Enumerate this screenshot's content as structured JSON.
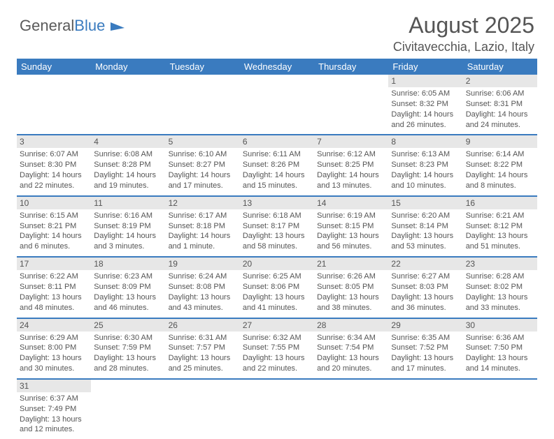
{
  "brand": {
    "part1": "General",
    "part2": "Blue",
    "color1": "#5a5a5a",
    "color2": "#3a7bbf"
  },
  "header": {
    "title": "August 2025",
    "subtitle": "Civitavecchia, Lazio, Italy"
  },
  "style": {
    "header_bg": "#3a7bbf",
    "header_fg": "#ffffff",
    "daynum_bg": "#e7e7e7",
    "text_color": "#555555",
    "row_border": "#3a7bbf",
    "title_fontsize": 32,
    "subtitle_fontsize": 18,
    "thead_fontsize": 13,
    "daynum_fontsize": 12,
    "info_fontsize": 11
  },
  "weekdays": [
    "Sunday",
    "Monday",
    "Tuesday",
    "Wednesday",
    "Thursday",
    "Friday",
    "Saturday"
  ],
  "weeks": [
    [
      null,
      null,
      null,
      null,
      null,
      {
        "n": "1",
        "sr": "6:05 AM",
        "ss": "8:32 PM",
        "dl": "14 hours and 26 minutes."
      },
      {
        "n": "2",
        "sr": "6:06 AM",
        "ss": "8:31 PM",
        "dl": "14 hours and 24 minutes."
      }
    ],
    [
      {
        "n": "3",
        "sr": "6:07 AM",
        "ss": "8:30 PM",
        "dl": "14 hours and 22 minutes."
      },
      {
        "n": "4",
        "sr": "6:08 AM",
        "ss": "8:28 PM",
        "dl": "14 hours and 19 minutes."
      },
      {
        "n": "5",
        "sr": "6:10 AM",
        "ss": "8:27 PM",
        "dl": "14 hours and 17 minutes."
      },
      {
        "n": "6",
        "sr": "6:11 AM",
        "ss": "8:26 PM",
        "dl": "14 hours and 15 minutes."
      },
      {
        "n": "7",
        "sr": "6:12 AM",
        "ss": "8:25 PM",
        "dl": "14 hours and 13 minutes."
      },
      {
        "n": "8",
        "sr": "6:13 AM",
        "ss": "8:23 PM",
        "dl": "14 hours and 10 minutes."
      },
      {
        "n": "9",
        "sr": "6:14 AM",
        "ss": "8:22 PM",
        "dl": "14 hours and 8 minutes."
      }
    ],
    [
      {
        "n": "10",
        "sr": "6:15 AM",
        "ss": "8:21 PM",
        "dl": "14 hours and 6 minutes."
      },
      {
        "n": "11",
        "sr": "6:16 AM",
        "ss": "8:19 PM",
        "dl": "14 hours and 3 minutes."
      },
      {
        "n": "12",
        "sr": "6:17 AM",
        "ss": "8:18 PM",
        "dl": "14 hours and 1 minute."
      },
      {
        "n": "13",
        "sr": "6:18 AM",
        "ss": "8:17 PM",
        "dl": "13 hours and 58 minutes."
      },
      {
        "n": "14",
        "sr": "6:19 AM",
        "ss": "8:15 PM",
        "dl": "13 hours and 56 minutes."
      },
      {
        "n": "15",
        "sr": "6:20 AM",
        "ss": "8:14 PM",
        "dl": "13 hours and 53 minutes."
      },
      {
        "n": "16",
        "sr": "6:21 AM",
        "ss": "8:12 PM",
        "dl": "13 hours and 51 minutes."
      }
    ],
    [
      {
        "n": "17",
        "sr": "6:22 AM",
        "ss": "8:11 PM",
        "dl": "13 hours and 48 minutes."
      },
      {
        "n": "18",
        "sr": "6:23 AM",
        "ss": "8:09 PM",
        "dl": "13 hours and 46 minutes."
      },
      {
        "n": "19",
        "sr": "6:24 AM",
        "ss": "8:08 PM",
        "dl": "13 hours and 43 minutes."
      },
      {
        "n": "20",
        "sr": "6:25 AM",
        "ss": "8:06 PM",
        "dl": "13 hours and 41 minutes."
      },
      {
        "n": "21",
        "sr": "6:26 AM",
        "ss": "8:05 PM",
        "dl": "13 hours and 38 minutes."
      },
      {
        "n": "22",
        "sr": "6:27 AM",
        "ss": "8:03 PM",
        "dl": "13 hours and 36 minutes."
      },
      {
        "n": "23",
        "sr": "6:28 AM",
        "ss": "8:02 PM",
        "dl": "13 hours and 33 minutes."
      }
    ],
    [
      {
        "n": "24",
        "sr": "6:29 AM",
        "ss": "8:00 PM",
        "dl": "13 hours and 30 minutes."
      },
      {
        "n": "25",
        "sr": "6:30 AM",
        "ss": "7:59 PM",
        "dl": "13 hours and 28 minutes."
      },
      {
        "n": "26",
        "sr": "6:31 AM",
        "ss": "7:57 PM",
        "dl": "13 hours and 25 minutes."
      },
      {
        "n": "27",
        "sr": "6:32 AM",
        "ss": "7:55 PM",
        "dl": "13 hours and 22 minutes."
      },
      {
        "n": "28",
        "sr": "6:34 AM",
        "ss": "7:54 PM",
        "dl": "13 hours and 20 minutes."
      },
      {
        "n": "29",
        "sr": "6:35 AM",
        "ss": "7:52 PM",
        "dl": "13 hours and 17 minutes."
      },
      {
        "n": "30",
        "sr": "6:36 AM",
        "ss": "7:50 PM",
        "dl": "13 hours and 14 minutes."
      }
    ],
    [
      {
        "n": "31",
        "sr": "6:37 AM",
        "ss": "7:49 PM",
        "dl": "13 hours and 12 minutes."
      },
      null,
      null,
      null,
      null,
      null,
      null
    ]
  ],
  "labels": {
    "sunrise": "Sunrise:",
    "sunset": "Sunset:",
    "daylight": "Daylight:"
  }
}
